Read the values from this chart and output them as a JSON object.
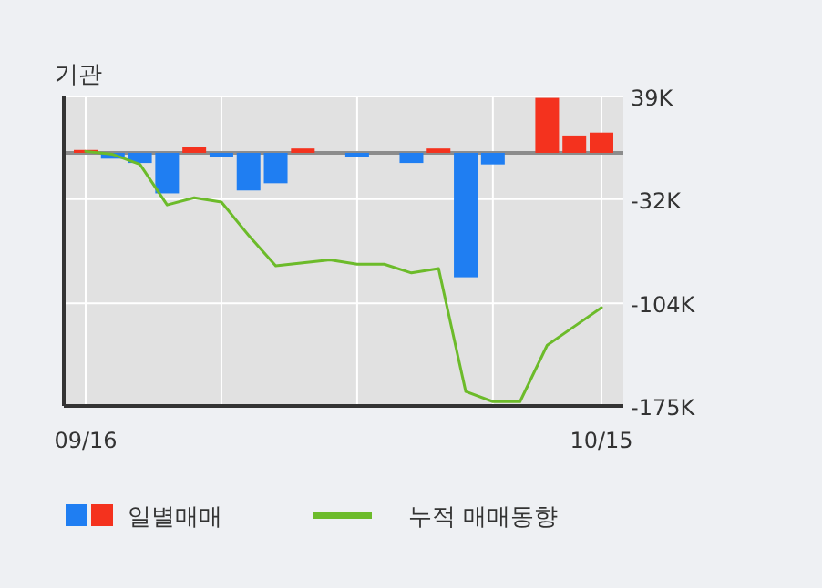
{
  "chart_data": {
    "type": "bar",
    "title": "기관",
    "categories": [
      "09/16",
      null,
      null,
      null,
      null,
      null,
      null,
      null,
      null,
      null,
      null,
      null,
      null,
      null,
      null,
      null,
      null,
      null,
      null,
      "10/15"
    ],
    "series": [
      {
        "name": "일별매매",
        "colors": [
          "#f4321e",
          "#1f7ef2",
          "#1f7ef2",
          "#1f7ef2",
          "#f4321e",
          "#1f7ef2",
          "#1f7ef2",
          "#1f7ef2",
          "#f4321e",
          "#1f7ef2",
          "#1f7ef2",
          "#1f7ef2",
          "#1f7ef2",
          "#f4321e",
          "#1f7ef2",
          "#1f7ef2",
          "#1f7ef2",
          "#f4321e",
          "#f4321e",
          "#f4321e"
        ],
        "values": [
          2,
          -4,
          -7,
          -28,
          4,
          -3,
          -26,
          -21,
          3,
          0,
          -3,
          0,
          -7,
          3,
          -86,
          -8,
          0,
          38,
          12,
          14
        ]
      },
      {
        "name": "누적 매매동향",
        "type": "line",
        "color": "#6cbb2a",
        "values": [
          1,
          -1,
          -8,
          -36,
          -31,
          -34,
          -57,
          -78,
          -76,
          -74,
          -77,
          -77,
          -83,
          -80,
          -165,
          -172,
          -172,
          -133,
          -120,
          -107
        ]
      }
    ],
    "ylim": [
      -175,
      39
    ],
    "yticks": [
      {
        "value": 39,
        "label": "39K"
      },
      {
        "value": -32,
        "label": "-32K"
      },
      {
        "value": -104,
        "label": "-104K"
      },
      {
        "value": -175,
        "label": "-175K"
      }
    ],
    "ref_lines": [
      {
        "axis": "y",
        "value": 0,
        "color": "#8c8c8c"
      }
    ],
    "grid": true,
    "legend": "bottom"
  }
}
